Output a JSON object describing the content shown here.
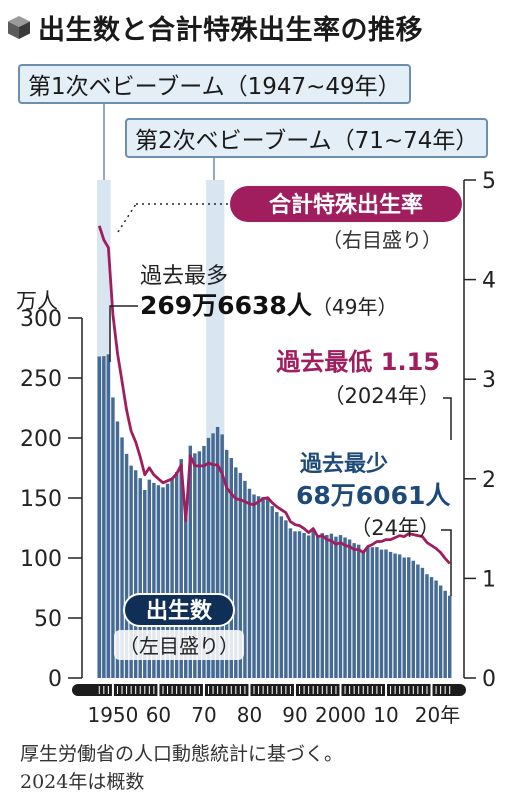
{
  "title": "出生数と合計特殊出生率の推移",
  "booms": {
    "first": "第1次ベビーブーム（1947~49年）",
    "second": "第2次ベビーブーム（71~74年）"
  },
  "colors": {
    "births_bar": "#456b95",
    "tfr_line": "#a01d5e",
    "boom_band": "#d9e5f1",
    "boom_border": "#6d8fae",
    "births_label": "#1d4a78",
    "axis": "#222222"
  },
  "chart_data": {
    "type": "bar",
    "xlabel_unit": "年",
    "left_axis": {
      "unit": "万人",
      "ticks": [
        0,
        50,
        100,
        150,
        200,
        250,
        300
      ],
      "range": [
        0,
        300
      ]
    },
    "right_axis": {
      "unit": "",
      "ticks": [
        0,
        1,
        2,
        3,
        4,
        5
      ],
      "range": [
        0,
        5
      ]
    },
    "x_tick_labels": [
      "1950",
      "60",
      "70",
      "80",
      "90",
      "2000",
      "10",
      "20年"
    ],
    "x_tick_years": [
      1950,
      1960,
      1970,
      1980,
      1990,
      2000,
      2010,
      2020
    ],
    "series": [
      {
        "name": "出生数",
        "sub": "（左目盛り）",
        "axis": "left",
        "type": "bar",
        "x": [
          1947,
          1948,
          1949,
          1950,
          1951,
          1952,
          1953,
          1954,
          1955,
          1956,
          1957,
          1958,
          1959,
          1960,
          1961,
          1962,
          1963,
          1964,
          1965,
          1966,
          1967,
          1968,
          1969,
          1970,
          1971,
          1972,
          1973,
          1974,
          1975,
          1976,
          1977,
          1978,
          1979,
          1980,
          1981,
          1982,
          1983,
          1984,
          1985,
          1986,
          1987,
          1988,
          1989,
          1990,
          1991,
          1992,
          1993,
          1994,
          1995,
          1996,
          1997,
          1998,
          1999,
          2000,
          2001,
          2002,
          2003,
          2004,
          2005,
          2006,
          2007,
          2008,
          2009,
          2010,
          2011,
          2012,
          2013,
          2014,
          2015,
          2016,
          2017,
          2018,
          2019,
          2020,
          2021,
          2022,
          2023,
          2024
        ],
        "values": [
          267.9,
          268.2,
          269.7,
          233.8,
          213.8,
          200.5,
          186.8,
          177.0,
          173.1,
          166.5,
          156.7,
          165.3,
          162.6,
          160.6,
          158.9,
          161.9,
          166.0,
          171.7,
          182.4,
          136.1,
          193.6,
          187.2,
          188.9,
          193.4,
          200.1,
          203.9,
          209.2,
          203.0,
          190.1,
          183.3,
          175.5,
          170.9,
          164.3,
          157.7,
          152.9,
          151.5,
          150.9,
          149.0,
          143.2,
          138.3,
          134.7,
          131.4,
          124.7,
          122.2,
          122.3,
          120.9,
          118.8,
          123.8,
          118.7,
          120.7,
          119.2,
          120.3,
          117.8,
          119.1,
          117.1,
          115.4,
          112.4,
          111.1,
          106.3,
          109.3,
          109.0,
          109.1,
          107.0,
          107.1,
          105.1,
          103.7,
          103.0,
          100.4,
          100.6,
          97.7,
          94.6,
          91.8,
          86.5,
          84.1,
          81.2,
          77.1,
          72.7,
          68.6
        ]
      },
      {
        "name": "合計特殊出生率",
        "sub": "（右目盛り）",
        "axis": "right",
        "type": "line",
        "x": [
          1947,
          1948,
          1949,
          1950,
          1951,
          1952,
          1953,
          1954,
          1955,
          1956,
          1957,
          1958,
          1959,
          1960,
          1961,
          1962,
          1963,
          1964,
          1965,
          1966,
          1967,
          1968,
          1969,
          1970,
          1971,
          1972,
          1973,
          1974,
          1975,
          1976,
          1977,
          1978,
          1979,
          1980,
          1981,
          1982,
          1983,
          1984,
          1985,
          1986,
          1987,
          1988,
          1989,
          1990,
          1991,
          1992,
          1993,
          1994,
          1995,
          1996,
          1997,
          1998,
          1999,
          2000,
          2001,
          2002,
          2003,
          2004,
          2005,
          2006,
          2007,
          2008,
          2009,
          2010,
          2011,
          2012,
          2013,
          2014,
          2015,
          2016,
          2017,
          2018,
          2019,
          2020,
          2021,
          2022,
          2023,
          2024
        ],
        "values": [
          4.54,
          4.4,
          4.32,
          3.65,
          3.26,
          2.98,
          2.69,
          2.48,
          2.37,
          2.22,
          2.04,
          2.11,
          2.04,
          2.0,
          1.96,
          1.98,
          2.0,
          2.05,
          2.14,
          1.58,
          2.23,
          2.13,
          2.13,
          2.13,
          2.16,
          2.14,
          2.14,
          2.05,
          1.91,
          1.85,
          1.8,
          1.79,
          1.77,
          1.75,
          1.74,
          1.77,
          1.8,
          1.81,
          1.76,
          1.72,
          1.69,
          1.66,
          1.57,
          1.54,
          1.53,
          1.5,
          1.46,
          1.5,
          1.42,
          1.43,
          1.39,
          1.38,
          1.34,
          1.36,
          1.33,
          1.32,
          1.29,
          1.29,
          1.26,
          1.32,
          1.34,
          1.37,
          1.37,
          1.39,
          1.39,
          1.41,
          1.43,
          1.42,
          1.45,
          1.44,
          1.43,
          1.42,
          1.36,
          1.33,
          1.3,
          1.26,
          1.2,
          1.15
        ]
      }
    ],
    "annotations": {
      "max_births": {
        "line1": "過去最多",
        "line2": "269万6638人",
        "line3": "（49年）",
        "year": 1949,
        "value": 269.7
      },
      "min_tfr": {
        "line1": "過去最低 1.15",
        "line2": "（2024年）",
        "year": 2024,
        "value": 1.15
      },
      "min_births": {
        "line1": "過去最少",
        "line2": "68万6061人",
        "line3": "（24年）",
        "year": 2024,
        "value": 68.6
      }
    },
    "boom_periods": [
      [
        1947,
        1949
      ],
      [
        1971,
        1974
      ]
    ]
  },
  "source_note": {
    "line1": "厚生労働省の人口動態統計に基づく。",
    "line2": "2024年は概数"
  }
}
